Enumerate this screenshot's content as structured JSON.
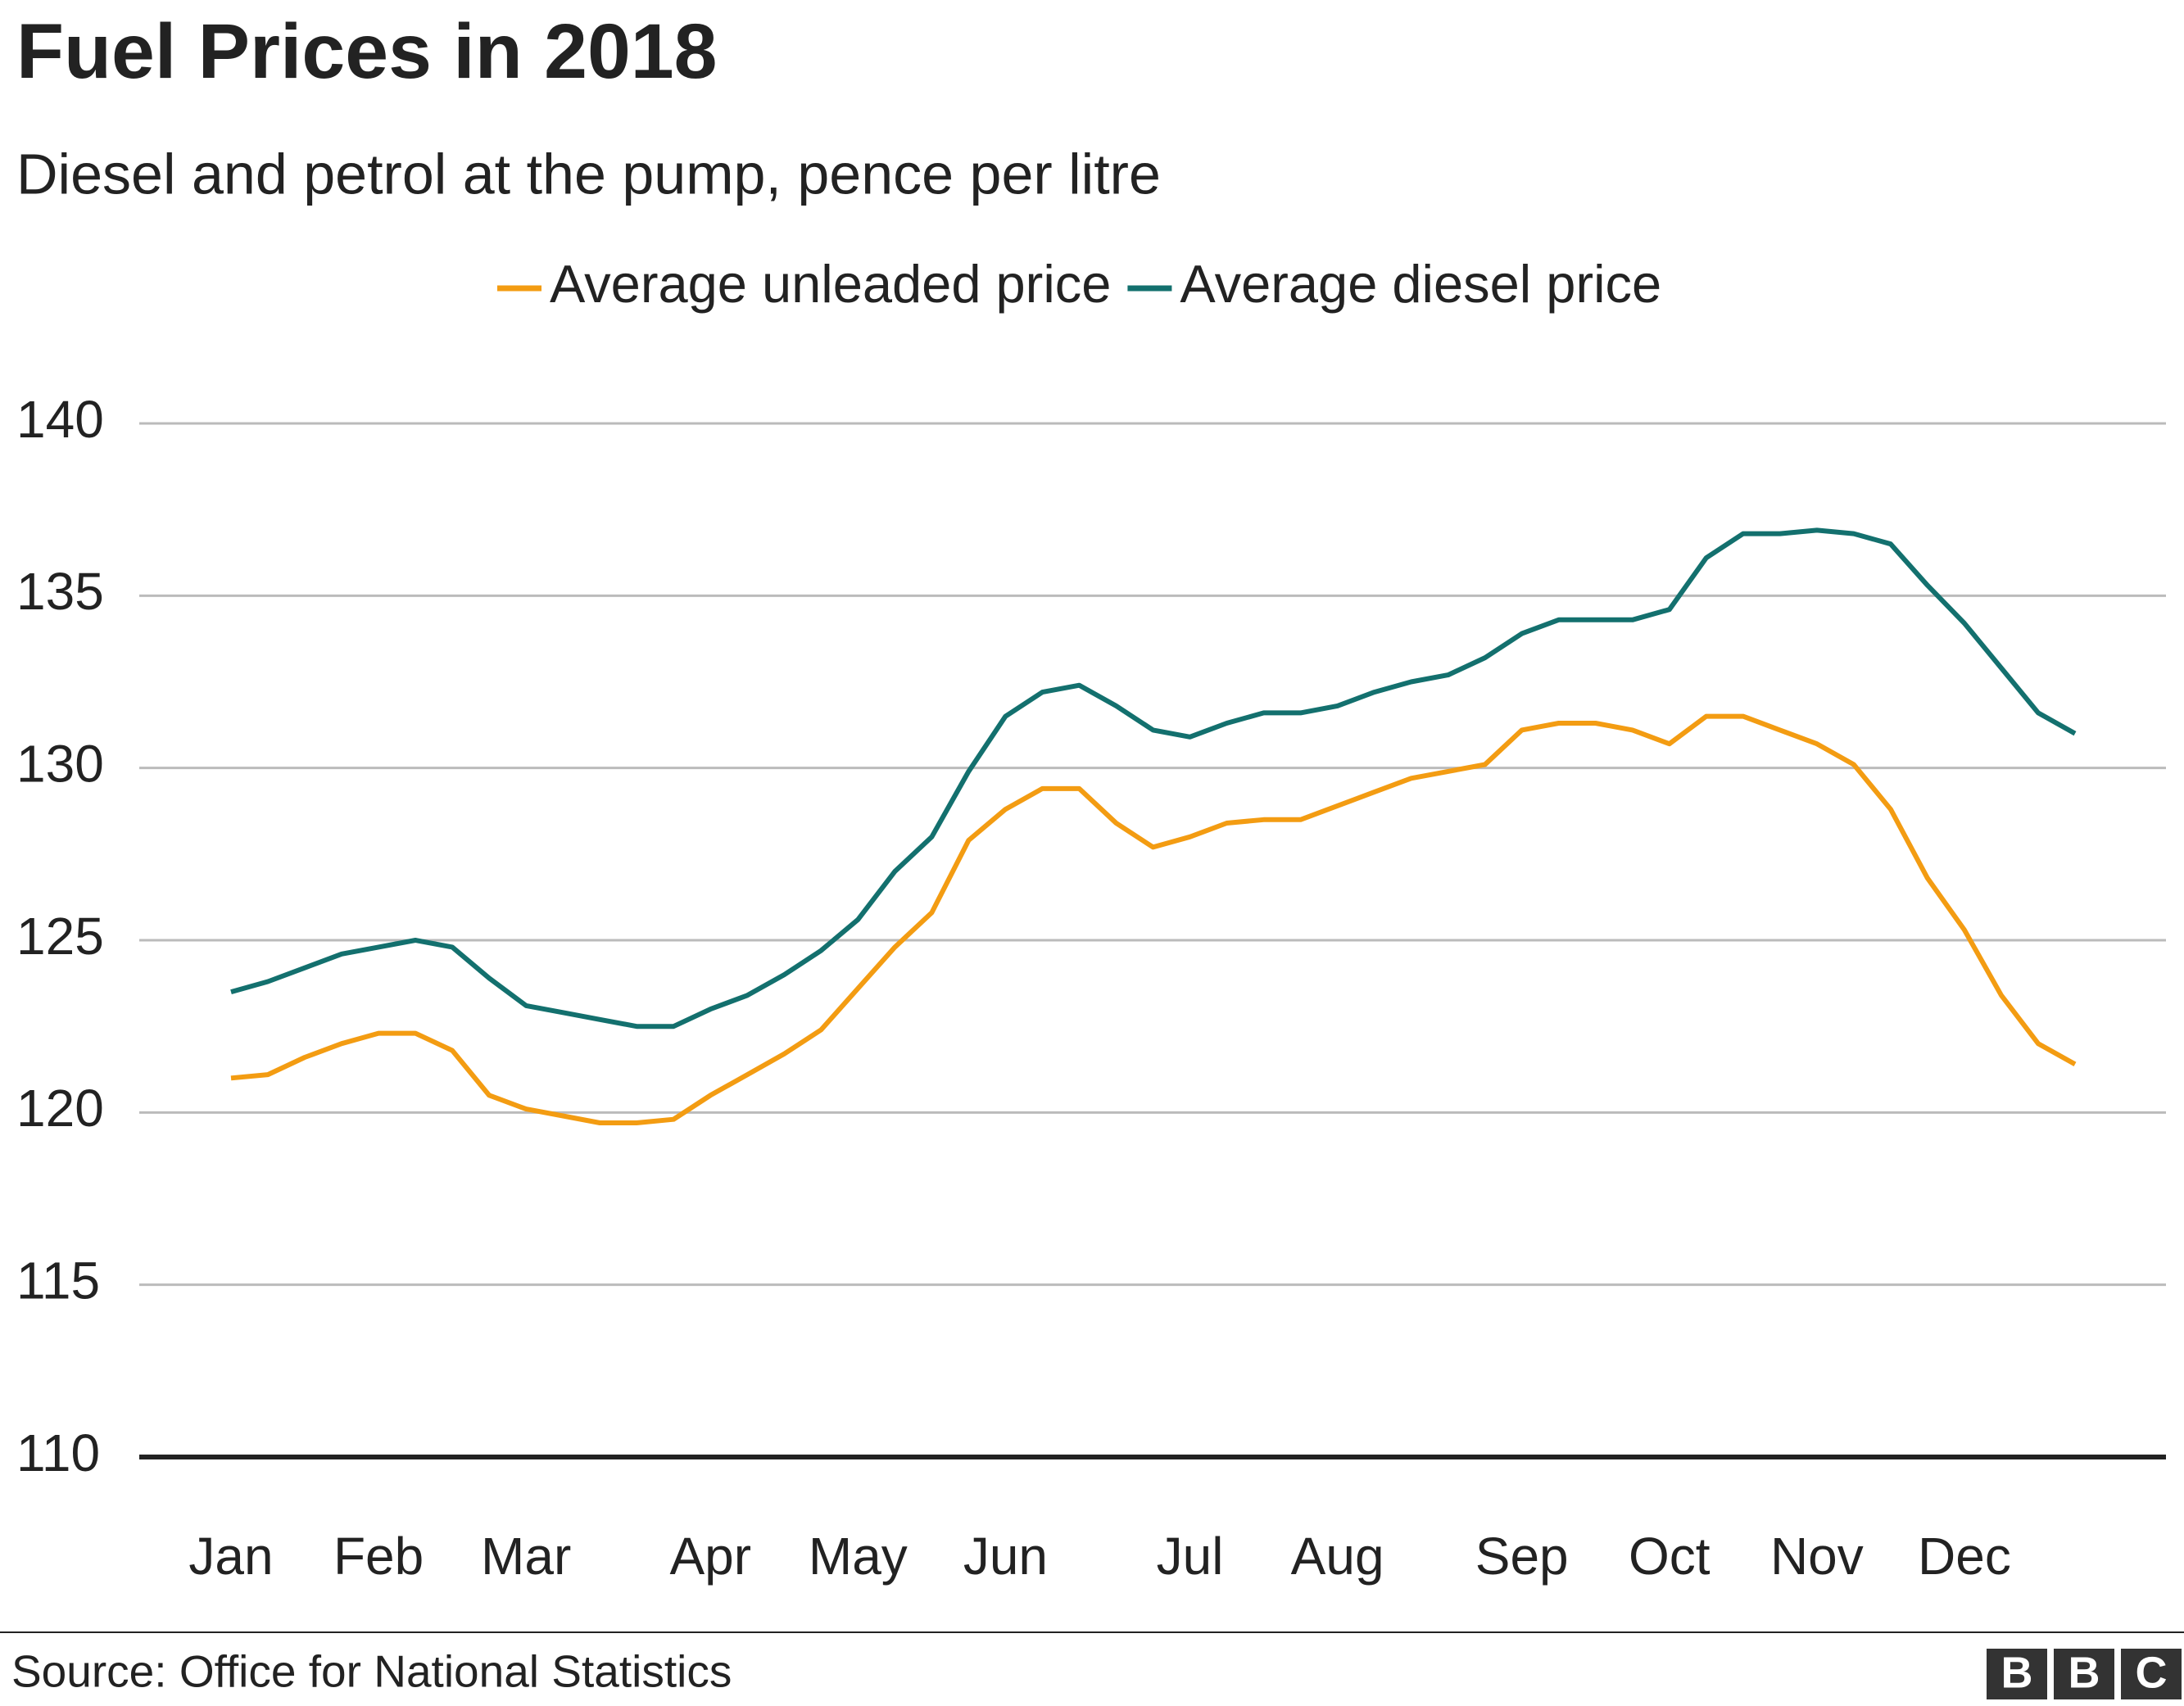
{
  "chart_data": {
    "type": "line",
    "title": "Fuel Prices in 2018",
    "subtitle": "Diesel and petrol at the pump, pence per litre",
    "categories": [
      "Jan",
      null,
      null,
      null,
      "Feb",
      null,
      null,
      null,
      "Mar",
      null,
      null,
      null,
      null,
      "Apr",
      null,
      null,
      null,
      "May",
      null,
      null,
      null,
      "Jun",
      null,
      null,
      null,
      null,
      "Jul",
      null,
      null,
      null,
      "Aug",
      null,
      null,
      null,
      null,
      "Sep",
      null,
      null,
      null,
      "Oct",
      null,
      null,
      null,
      "Nov",
      null,
      null,
      null,
      "Dec",
      null,
      null,
      null
    ],
    "series": [
      {
        "name": "Average unleaded price",
        "color": "#f39c12",
        "values": [
          121.0,
          121.1,
          121.6,
          122.0,
          122.3,
          122.3,
          121.8,
          120.5,
          120.1,
          119.9,
          119.7,
          119.7,
          119.8,
          120.5,
          121.1,
          121.7,
          122.4,
          123.6,
          124.8,
          125.8,
          127.9,
          128.8,
          129.4,
          129.4,
          128.4,
          127.7,
          128.0,
          128.4,
          128.5,
          128.5,
          128.9,
          129.3,
          129.7,
          129.9,
          130.1,
          131.1,
          131.3,
          131.3,
          131.1,
          130.7,
          131.5,
          131.5,
          131.1,
          130.7,
          130.1,
          128.8,
          126.8,
          125.3,
          123.4,
          122.0,
          121.4
        ]
      },
      {
        "name": "Average diesel price",
        "color": "#13706e",
        "values": [
          123.5,
          123.8,
          124.2,
          124.6,
          124.8,
          125.0,
          124.8,
          123.9,
          123.1,
          122.9,
          122.7,
          122.5,
          122.5,
          123.0,
          123.4,
          124.0,
          124.7,
          125.6,
          127.0,
          128.0,
          129.9,
          131.5,
          132.2,
          132.4,
          131.8,
          131.1,
          130.9,
          131.3,
          131.6,
          131.6,
          131.8,
          132.2,
          132.5,
          132.7,
          133.2,
          133.9,
          134.3,
          134.3,
          134.3,
          134.6,
          136.1,
          136.8,
          136.8,
          136.9,
          136.8,
          136.5,
          135.3,
          134.2,
          132.9,
          131.6,
          131.0
        ]
      }
    ],
    "ylim": [
      110,
      140
    ],
    "yticks": [
      110,
      115,
      120,
      125,
      130,
      135,
      140
    ],
    "grid": true,
    "legend": "top",
    "source": "Source: Office for National Statistics",
    "logo": [
      "B",
      "B",
      "C"
    ]
  }
}
